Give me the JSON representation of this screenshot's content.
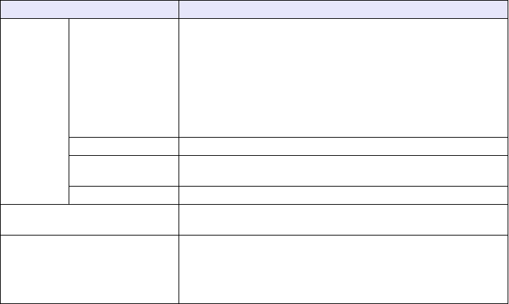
{
  "colors": {
    "header_background": "#e6e6fa",
    "border": "#000000"
  },
  "table": {
    "header": [
      "",
      ""
    ],
    "rows": []
  }
}
